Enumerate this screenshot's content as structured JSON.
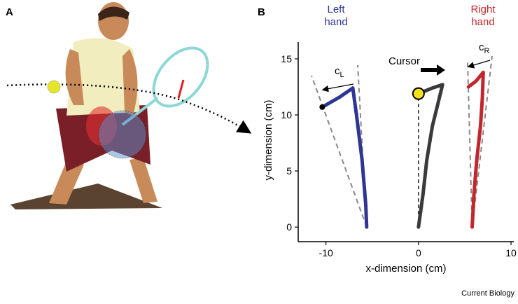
{
  "panels": [
    "A",
    "B"
  ],
  "credit": "Current Biology",
  "chart_data": {
    "type": "line",
    "x_label": "x-dimension (cm)",
    "y_label": "y-dimension (cm)",
    "xlim": [
      -13,
      10.3
    ],
    "ylim": [
      -1.3,
      16.5
    ],
    "xticks": [
      -10,
      0,
      10
    ],
    "yticks": [
      0,
      5,
      10,
      15
    ],
    "annotations": [
      {
        "text": "c",
        "subscript": "L"
      },
      {
        "text": "c",
        "subscript": "R"
      }
    ],
    "series": [
      {
        "name": "Left hand",
        "color": "#2e3592",
        "x": [
          -5.6,
          -5.7,
          -5.9,
          -6.1,
          -6.4,
          -6.7,
          -7.1,
          -8.5,
          -10.4
        ],
        "values": [
          0,
          2,
          4,
          6,
          8,
          10,
          12.4,
          11.6,
          10.7
        ]
      },
      {
        "name": "Cursor",
        "color": "#3a3a3a",
        "x": [
          0,
          0.5,
          0.9,
          1.5,
          2.1,
          2.6,
          1.5,
          0
        ],
        "values": [
          0,
          3,
          6,
          9,
          11,
          12.7,
          12.4,
          11.9
        ]
      },
      {
        "name": "Right hand",
        "color": "#c1272d",
        "x": [
          5.8,
          6.0,
          6.3,
          6.7,
          6.9,
          7.0,
          6.2,
          5.4
        ],
        "values": [
          0,
          3,
          6,
          9,
          11.5,
          13.8,
          13,
          12.5
        ]
      }
    ]
  }
}
